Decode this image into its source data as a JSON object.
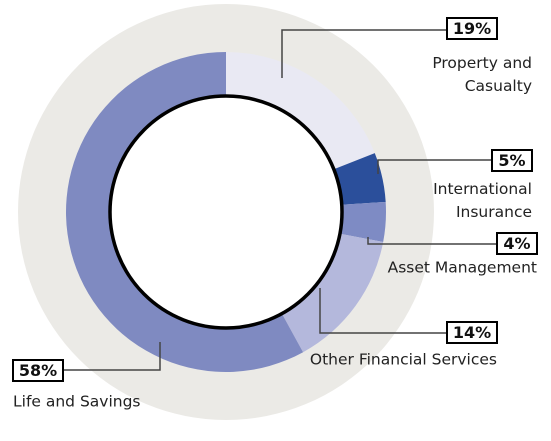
{
  "chart_data": {
    "type": "donut",
    "categories": [
      "Property and Casualty",
      "International Insurance",
      "Asset Management",
      "Other Financial Services",
      "Life and Savings"
    ],
    "values": [
      19,
      5,
      4,
      14,
      58
    ],
    "value_labels": [
      "19%",
      "5%",
      "4%",
      "14%",
      "58%"
    ],
    "colors": [
      "#e9e9f3",
      "#2b4f9b",
      "#7e8bc4",
      "#b4b8dc",
      "#7f8ac1"
    ]
  }
}
